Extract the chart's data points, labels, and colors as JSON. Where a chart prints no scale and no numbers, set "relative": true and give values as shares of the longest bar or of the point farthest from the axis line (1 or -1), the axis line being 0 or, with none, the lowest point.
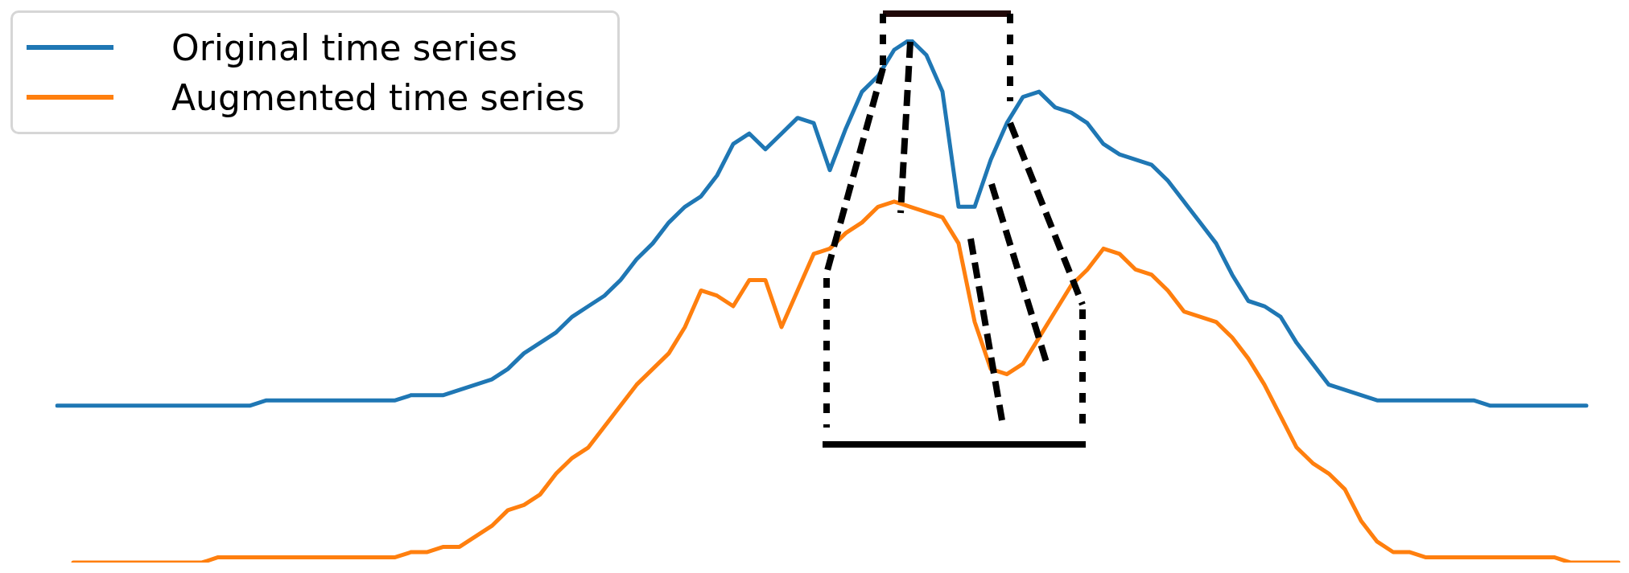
{
  "chart_data": {
    "type": "line",
    "relative": true,
    "legend": "top left",
    "marker": "none",
    "line_style": "solid",
    "categories": [
      null,
      null,
      null,
      null,
      null,
      null,
      null,
      null,
      null,
      null,
      null,
      null,
      null,
      null,
      null,
      null,
      null,
      null,
      null,
      null,
      null,
      null,
      null,
      null,
      null,
      null,
      null,
      null,
      null,
      null,
      null,
      null,
      null,
      null,
      null,
      null,
      null,
      null,
      null,
      null,
      null,
      null,
      null,
      null,
      null,
      null,
      null,
      null,
      null,
      null,
      null,
      null,
      null,
      null,
      null,
      null,
      null,
      null,
      null,
      null,
      null,
      null,
      null,
      null,
      null,
      null,
      null,
      null,
      null,
      null,
      null,
      null,
      null,
      null,
      null,
      null,
      null,
      null,
      null,
      null,
      null,
      null,
      null,
      null,
      null,
      null,
      null,
      null,
      null,
      null,
      null,
      null,
      null,
      null,
      null,
      null,
      null,
      null
    ],
    "series": [
      {
        "name": "Original time series",
        "color": "#1f77b4",
        "values": [
          0.3,
          0.3,
          0.3,
          0.3,
          0.3,
          0.3,
          0.3,
          0.3,
          0.3,
          0.3,
          0.3,
          0.3,
          0.3,
          0.31,
          0.31,
          0.31,
          0.31,
          0.31,
          0.31,
          0.31,
          0.31,
          0.31,
          0.32,
          0.32,
          0.32,
          0.33,
          0.34,
          0.35,
          0.37,
          0.4,
          0.42,
          0.44,
          0.47,
          0.49,
          0.51,
          0.54,
          0.58,
          0.61,
          0.65,
          0.68,
          0.7,
          0.74,
          0.8,
          0.82,
          0.79,
          0.82,
          0.85,
          0.84,
          0.75,
          0.83,
          0.9,
          0.93,
          0.98,
          1.0,
          0.97,
          0.9,
          0.68,
          0.68,
          0.77,
          0.84,
          0.89,
          0.9,
          0.87,
          0.86,
          0.84,
          0.8,
          0.78,
          0.77,
          0.76,
          0.73,
          0.69,
          0.65,
          0.61,
          0.55,
          0.5,
          0.49,
          0.47,
          0.42,
          0.38,
          0.34,
          0.33,
          0.32,
          0.31,
          0.31,
          0.31,
          0.31,
          0.31,
          0.31,
          0.31,
          0.3,
          0.3,
          0.3,
          0.3,
          0.3,
          0.3,
          0.3,
          null,
          null
        ]
      },
      {
        "name": "Augmented time series",
        "color": "#ff7f0e",
        "values": [
          null,
          0.0,
          0.0,
          0.0,
          0.0,
          0.0,
          0.0,
          0.0,
          0.0,
          0.0,
          0.01,
          0.01,
          0.01,
          0.01,
          0.01,
          0.01,
          0.01,
          0.01,
          0.01,
          0.01,
          0.01,
          0.01,
          0.02,
          0.02,
          0.03,
          0.03,
          0.05,
          0.07,
          0.1,
          0.11,
          0.13,
          0.17,
          0.2,
          0.22,
          0.26,
          0.3,
          0.34,
          0.37,
          0.4,
          0.45,
          0.52,
          0.51,
          0.49,
          0.54,
          0.54,
          0.45,
          0.52,
          0.59,
          0.6,
          0.63,
          0.65,
          0.68,
          0.69,
          0.68,
          0.67,
          0.66,
          0.61,
          0.46,
          0.37,
          0.36,
          0.38,
          0.43,
          0.48,
          0.53,
          0.56,
          0.6,
          0.59,
          0.56,
          0.55,
          0.52,
          0.48,
          0.47,
          0.46,
          0.43,
          0.39,
          0.34,
          0.28,
          0.22,
          0.19,
          0.17,
          0.14,
          0.08,
          0.04,
          0.02,
          0.02,
          0.01,
          0.01,
          0.01,
          0.01,
          0.01,
          0.01,
          0.01,
          0.01,
          0.01,
          0.0,
          0.0,
          0.0,
          0.0
        ]
      }
    ]
  }
}
